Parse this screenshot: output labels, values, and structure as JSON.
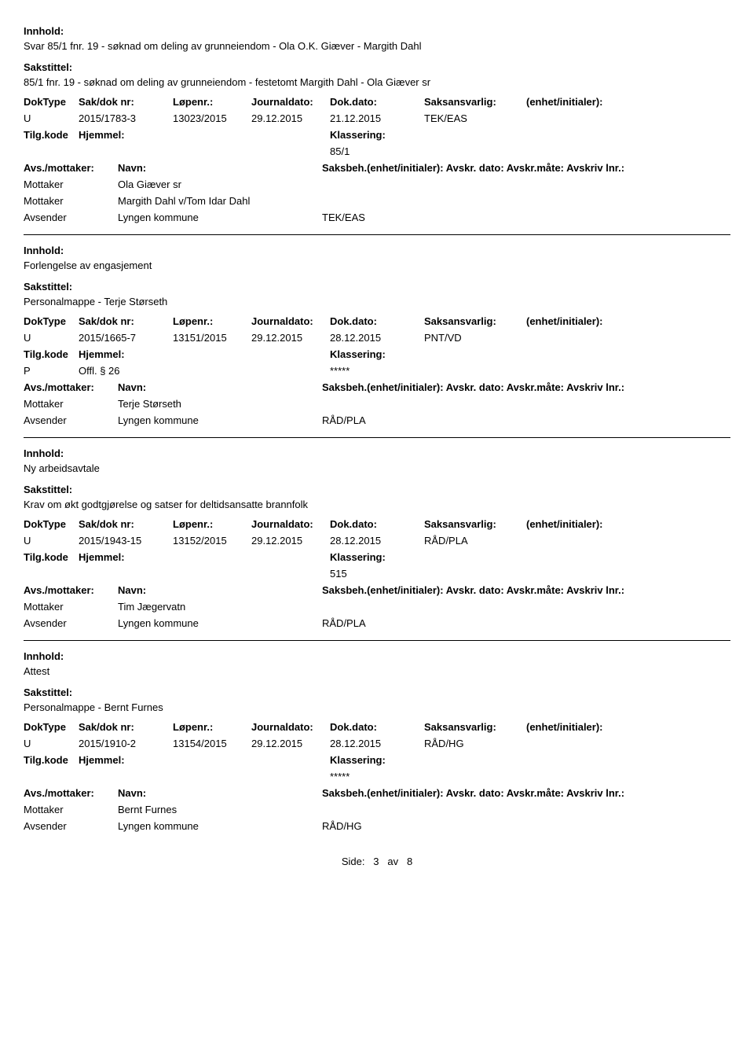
{
  "labels": {
    "innhold": "Innhold:",
    "sakstittel": "Sakstittel:",
    "doktype": "DokType",
    "sakdok": "Sak/dok nr:",
    "lopenr": "Løpenr.:",
    "journaldato": "Journaldato:",
    "dokdato": "Dok.dato:",
    "saksansvarlig": "Saksansvarlig:",
    "enhet": "(enhet/initialer):",
    "tilgkode": "Tilg.kode",
    "hjemmel": "Hjemmel:",
    "klassering": "Klassering:",
    "avsmottaker": "Avs./mottaker:",
    "navn": "Navn:",
    "saksbeh_full": "Saksbeh.(enhet/initialer): Avskr. dato: Avskr.måte: Avskriv lnr.:",
    "mottaker": "Mottaker",
    "avsender": "Avsender",
    "side": "Side:",
    "av": "av"
  },
  "entries": [
    {
      "innhold": "Svar  85/1 fnr. 19 - søknad om deling av grunneiendom - Ola O.K. Giæver - Margith Dahl",
      "sakstittel": "85/1 fnr. 19 - søknad om deling av grunneiendom - festetomt Margith Dahl - Ola Giæver sr",
      "doktype": "U",
      "sakdok": "2015/1783-3",
      "lopenr": "13023/2015",
      "journaldato": "29.12.2015",
      "dokdato": "21.12.2015",
      "saksansvarlig": "TEK/EAS",
      "enhet": "",
      "tilgkode": "",
      "hjemmel": "",
      "klassering": "85/1",
      "parties": [
        {
          "role": "Mottaker",
          "name": "Ola Giæver sr",
          "unit": ""
        },
        {
          "role": "Mottaker",
          "name": "Margith Dahl v/Tom Idar Dahl",
          "unit": ""
        },
        {
          "role": "Avsender",
          "name": "Lyngen kommune",
          "unit": "TEK/EAS"
        }
      ]
    },
    {
      "innhold": "Forlengelse av engasjement",
      "sakstittel": "Personalmappe - Terje Størseth",
      "doktype": "U",
      "sakdok": "2015/1665-7",
      "lopenr": "13151/2015",
      "journaldato": "29.12.2015",
      "dokdato": "28.12.2015",
      "saksansvarlig": "PNT/VD",
      "enhet": "",
      "tilgkode": "P",
      "hjemmel": "Offl. § 26",
      "klassering": "*****",
      "parties": [
        {
          "role": "Mottaker",
          "name": "Terje Størseth",
          "unit": ""
        },
        {
          "role": "Avsender",
          "name": "Lyngen kommune",
          "unit": "RÅD/PLA"
        }
      ]
    },
    {
      "innhold": "Ny arbeidsavtale",
      "sakstittel": "Krav om økt godtgjørelse og satser for deltidsansatte brannfolk",
      "doktype": "U",
      "sakdok": "2015/1943-15",
      "lopenr": "13152/2015",
      "journaldato": "29.12.2015",
      "dokdato": "28.12.2015",
      "saksansvarlig": "RÅD/PLA",
      "enhet": "",
      "tilgkode": "",
      "hjemmel": "",
      "klassering": "515",
      "parties": [
        {
          "role": "Mottaker",
          "name": "Tim Jægervatn",
          "unit": ""
        },
        {
          "role": "Avsender",
          "name": "Lyngen kommune",
          "unit": "RÅD/PLA"
        }
      ]
    },
    {
      "innhold": "Attest",
      "sakstittel": "Personalmappe - Bernt Furnes",
      "doktype": "U",
      "sakdok": "2015/1910-2",
      "lopenr": "13154/2015",
      "journaldato": "29.12.2015",
      "dokdato": "28.12.2015",
      "saksansvarlig": "RÅD/HG",
      "enhet": "",
      "tilgkode": "",
      "hjemmel": "",
      "klassering": "*****",
      "parties": [
        {
          "role": "Mottaker",
          "name": "Bernt Furnes",
          "unit": ""
        },
        {
          "role": "Avsender",
          "name": "Lyngen kommune",
          "unit": "RÅD/HG"
        }
      ]
    }
  ],
  "page": {
    "current": "3",
    "total": "8"
  }
}
